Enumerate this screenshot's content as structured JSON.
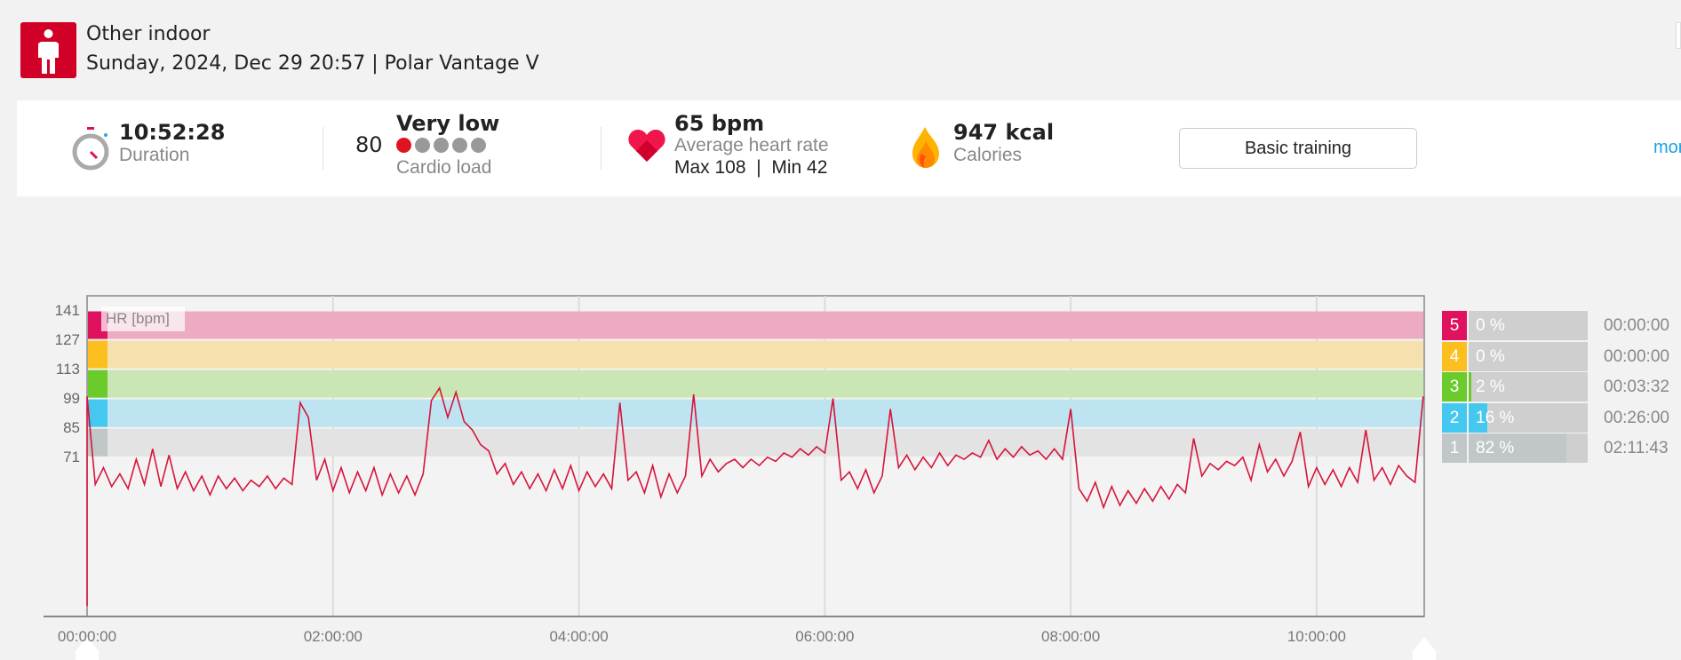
{
  "header": {
    "sport": "Other indoor",
    "subtitle": "Sunday, 2024, Dec 29 20:57 | Polar Vantage V",
    "sport_icon": "person-standing-icon"
  },
  "stats": {
    "duration": {
      "value": "10:52:28",
      "label": "Duration"
    },
    "cardio": {
      "number": "80",
      "level": "Very low",
      "label": "Cardio load",
      "filled_dots": 1,
      "total_dots": 5
    },
    "heart_rate": {
      "value": "65 bpm",
      "label": "Average heart rate",
      "minmax": "Max 108  |  Min 42"
    },
    "calories": {
      "value": "947 kcal",
      "label": "Calories"
    },
    "benefit_button": "Basic training",
    "more_link": "more"
  },
  "colors": {
    "accent": "#d10027",
    "line": "#d7143b",
    "link": "#1aa0e0"
  },
  "zones": [
    {
      "zone": "5",
      "percent": 0,
      "pct_label": "0 %",
      "time": "00:00:00",
      "color": "#e0115f",
      "band": "#ecaac3",
      "from": 127,
      "to": 141
    },
    {
      "zone": "4",
      "percent": 0,
      "pct_label": "0 %",
      "time": "00:00:00",
      "color": "#fbbf1f",
      "band": "#f6e1ae",
      "from": 113,
      "to": 127
    },
    {
      "zone": "3",
      "percent": 2,
      "pct_label": "2 %",
      "time": "00:03:32",
      "color": "#6bcb2a",
      "band": "#cbe6b5",
      "from": 99,
      "to": 113
    },
    {
      "zone": "2",
      "percent": 16,
      "pct_label": "16 %",
      "time": "00:26:00",
      "color": "#45c8ef",
      "band": "#bee4f1",
      "from": 85,
      "to": 99
    },
    {
      "zone": "1",
      "percent": 82,
      "pct_label": "82 %",
      "time": "02:11:43",
      "color": "#c1c7c7",
      "band": "#e2e3e2",
      "from": 71,
      "to": 85
    }
  ],
  "chart_data": {
    "type": "line",
    "title": "",
    "series_label": "HR [bpm]",
    "ylabel": "HR [bpm]",
    "xlabel": "",
    "ylim": [
      -5,
      148
    ],
    "xlim_min": [
      0,
      652.5
    ],
    "yticks": [
      "141",
      "127",
      "113",
      "99",
      "85",
      "71"
    ],
    "ytick_values": [
      141,
      127,
      113,
      99,
      85,
      71
    ],
    "xticks": [
      "00:00:00",
      "02:00:00",
      "04:00:00",
      "06:00:00",
      "08:00:00",
      "10:00:00"
    ],
    "xtick_values_min": [
      0,
      120,
      240,
      360,
      480,
      600
    ],
    "x_step_min": 4,
    "values": [
      100,
      58,
      66,
      57,
      63,
      56,
      70,
      58,
      75,
      57,
      72,
      56,
      64,
      55,
      62,
      53,
      62,
      56,
      61,
      55,
      60,
      57,
      62,
      56,
      61,
      58,
      97,
      90,
      60,
      70,
      55,
      66,
      54,
      64,
      55,
      66,
      53,
      63,
      54,
      62,
      53,
      63,
      98,
      104,
      90,
      102,
      88,
      84,
      77,
      74,
      63,
      68,
      58,
      64,
      56,
      63,
      55,
      65,
      56,
      67,
      55,
      64,
      57,
      63,
      56,
      97,
      60,
      64,
      54,
      67,
      52,
      63,
      54,
      62,
      101,
      62,
      70,
      64,
      68,
      70,
      66,
      70,
      67,
      71,
      69,
      73,
      71,
      75,
      72,
      76,
      73,
      99,
      60,
      64,
      56,
      65,
      54,
      62,
      94,
      66,
      72,
      65,
      71,
      66,
      73,
      67,
      72,
      70,
      73,
      71,
      79,
      70,
      75,
      71,
      76,
      72,
      74,
      70,
      75,
      70,
      94,
      56,
      50,
      59,
      47,
      57,
      48,
      55,
      49,
      56,
      50,
      57,
      51,
      58,
      54,
      80,
      62,
      68,
      65,
      69,
      67,
      71,
      60,
      77,
      64,
      70,
      62,
      69,
      83,
      57,
      66,
      58,
      65,
      57,
      66,
      59,
      84,
      60,
      66,
      58,
      67,
      62,
      59,
      100
    ]
  }
}
